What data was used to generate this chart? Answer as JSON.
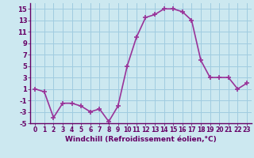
{
  "x": [
    0,
    1,
    2,
    3,
    4,
    5,
    6,
    7,
    8,
    9,
    10,
    11,
    12,
    13,
    14,
    15,
    16,
    17,
    18,
    19,
    20,
    21,
    22,
    23
  ],
  "y": [
    1,
    0.5,
    -4,
    -1.5,
    -1.5,
    -2,
    -3,
    -2.5,
    -4.7,
    -2,
    5,
    10,
    13.5,
    14,
    15,
    15,
    14.5,
    13,
    6,
    3,
    3,
    3,
    1,
    2
  ],
  "line_color": "#993399",
  "marker": "+",
  "marker_color": "#993399",
  "xlabel": "Windchill (Refroidissement éolien,°C)",
  "ylim": [
    -5,
    16
  ],
  "yticks": [
    -5,
    -3,
    -1,
    1,
    3,
    5,
    7,
    9,
    11,
    13,
    15
  ],
  "xticks": [
    0,
    1,
    2,
    3,
    4,
    5,
    6,
    7,
    8,
    9,
    10,
    11,
    12,
    13,
    14,
    15,
    16,
    17,
    18,
    19,
    20,
    21,
    22,
    23
  ],
  "xtick_labels": [
    "0",
    "1",
    "2",
    "3",
    "4",
    "5",
    "6",
    "7",
    "8",
    "9",
    "10",
    "11",
    "12",
    "13",
    "14",
    "15",
    "16",
    "17",
    "18",
    "19",
    "20",
    "21",
    "22",
    "23"
  ],
  "ytick_labels": [
    "-5",
    "-3",
    "-1",
    "1",
    "3",
    "5",
    "7",
    "9",
    "11",
    "13",
    "15"
  ],
  "bg_color": "#cce8f0",
  "grid_color": "#b0d8e8",
  "line_color_hex": "#993399",
  "line_width": 1.2,
  "marker_size": 5
}
